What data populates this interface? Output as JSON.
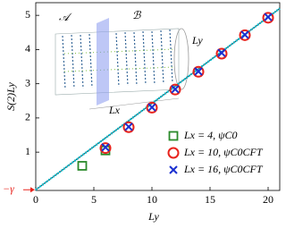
{
  "chart_data": {
    "type": "scatter",
    "x_label": "Ly",
    "y_label": "S(2)Ly",
    "xlim": [
      0,
      21
    ],
    "ylim": [
      -0.12,
      5.37
    ],
    "xticks": [
      0,
      5,
      10,
      15,
      20
    ],
    "yticks": [
      1,
      2,
      3,
      4,
      5
    ],
    "legend": "lower right",
    "fit": {
      "x": [
        0,
        21
      ],
      "values": [
        -0.1,
        5.2
      ],
      "color": "#00c8d8"
    },
    "annotations": {
      "gamma": "−γ",
      "region_a": "𝒜",
      "region_b": "ℬ",
      "ly": "Ly",
      "lx": "Lx"
    },
    "series": [
      {
        "name": "Lx = 4, ψC0",
        "color": "#2a8a2a",
        "marker": "square",
        "x": [
          4,
          6
        ],
        "values": [
          0.6,
          1.05
        ]
      },
      {
        "name": "Lx = 10, ψC0CFT",
        "color": "#e8231c",
        "marker": "circle",
        "x": [
          6,
          8,
          10,
          12,
          14,
          16,
          18,
          20
        ],
        "values": [
          1.12,
          1.73,
          2.3,
          2.83,
          3.35,
          3.88,
          4.42,
          4.93
        ]
      },
      {
        "name": "Lx = 16, ψC0CFT",
        "color": "#1a2fd0",
        "marker": "cross",
        "x": [
          6,
          8,
          10,
          12,
          14,
          16,
          18,
          20
        ],
        "values": [
          1.14,
          1.74,
          2.31,
          2.84,
          3.36,
          3.9,
          4.43,
          4.95
        ]
      }
    ]
  }
}
